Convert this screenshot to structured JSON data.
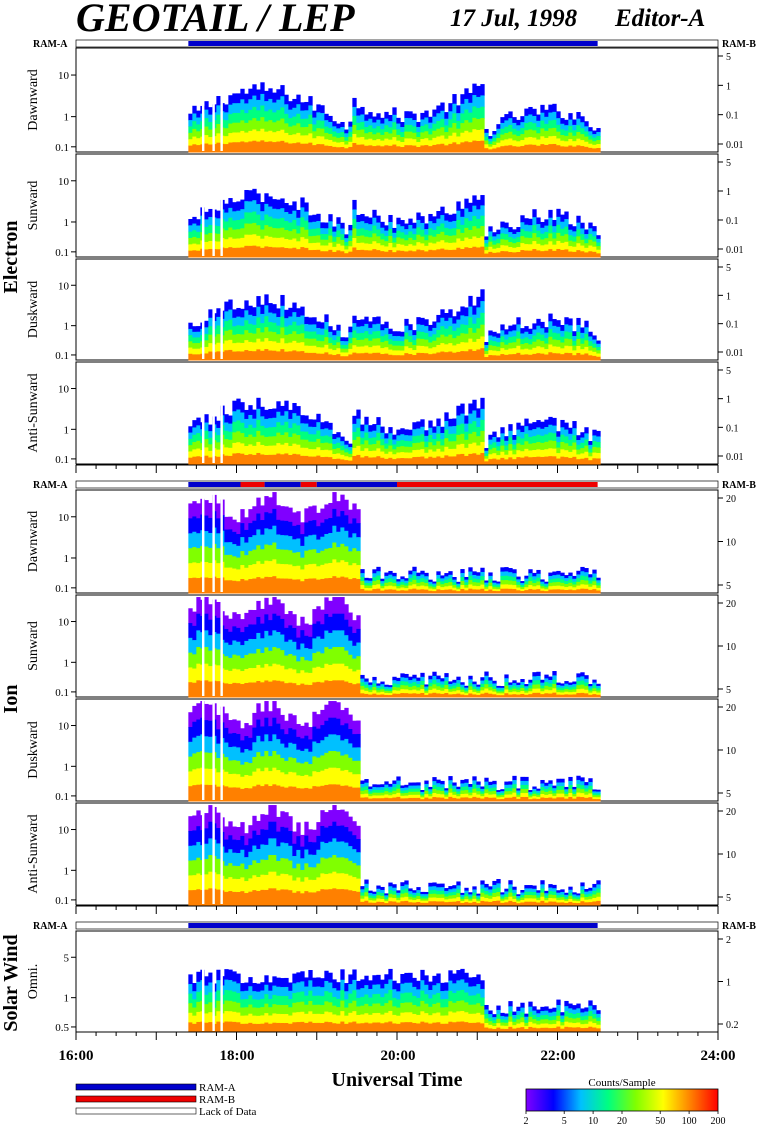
{
  "header": {
    "title": "GEOTAIL / LEP",
    "date": "17 Jul, 1998",
    "editor": "Editor-A"
  },
  "colors": {
    "ram_a": "#0000cc",
    "ram_b": "#ee0000",
    "spectrogram_scale": [
      "#8000ff",
      "#0000ff",
      "#00c0ff",
      "#00ff80",
      "#80ff00",
      "#ffff00",
      "#ff8000",
      "#ff0000"
    ]
  },
  "chart_data": {
    "type": "heatmap",
    "x": {
      "label": "Universal Time",
      "range_hours": [
        16,
        24
      ],
      "tick_labels": [
        "16:00",
        "18:00",
        "20:00",
        "22:00",
        "24:00"
      ],
      "tick_hours": [
        16,
        18,
        20,
        22,
        24
      ],
      "minor_tick_step_hours": 0.25
    },
    "data_coverage_hours": [
      17.4,
      22.5
    ],
    "data_gaps_hours": [
      [
        17.57,
        17.6
      ],
      [
        17.7,
        17.73
      ],
      [
        17.8,
        17.83
      ]
    ],
    "groups": [
      {
        "name": "Electron",
        "ram_label_left": "RAM-A",
        "ram_label_right": "RAM-B",
        "ram_segments": [
          {
            "mode": "A",
            "from": 17.4,
            "to": 22.5
          }
        ],
        "panels": [
          {
            "label": "Dawnward",
            "left_ticks": [
              "10",
              "1",
              "0.1"
            ],
            "right_ticks": [
              "5",
              "1",
              "0.1",
              "0.01"
            ]
          },
          {
            "label": "Sunward",
            "left_ticks": [
              "10",
              "1",
              "0.1"
            ],
            "right_ticks": [
              "5",
              "1",
              "0.1",
              "0.01"
            ]
          },
          {
            "label": "Duskward",
            "left_ticks": [
              "10",
              "1",
              "0.1"
            ],
            "right_ticks": [
              "5",
              "1",
              "0.1",
              "0.01"
            ]
          },
          {
            "label": "Anti-Sunward",
            "left_ticks": [
              "10",
              "1",
              "0.1"
            ],
            "right_ticks": [
              "5",
              "1",
              "0.1",
              "0.01"
            ]
          }
        ],
        "right_tick_values": [
          5,
          1,
          0.1,
          0.01
        ]
      },
      {
        "name": "Ion",
        "ram_label_left": "RAM-A",
        "ram_label_right": "RAM-B",
        "ram_segments": [
          {
            "mode": "A",
            "from": 17.4,
            "to": 18.05
          },
          {
            "mode": "B",
            "from": 18.05,
            "to": 18.35
          },
          {
            "mode": "A",
            "from": 18.35,
            "to": 18.8
          },
          {
            "mode": "B",
            "from": 18.8,
            "to": 19.0
          },
          {
            "mode": "A",
            "from": 19.0,
            "to": 20.0
          },
          {
            "mode": "B",
            "from": 20.0,
            "to": 22.5
          }
        ],
        "panels": [
          {
            "label": "Dawnward",
            "left_ticks": [
              "10",
              "1",
              "0.1"
            ],
            "right_ticks": [
              "20",
              "10",
              "5"
            ]
          },
          {
            "label": "Sunward",
            "left_ticks": [
              "10",
              "1",
              "0.1"
            ],
            "right_ticks": [
              "20",
              "10",
              "5"
            ]
          },
          {
            "label": "Duskward",
            "left_ticks": [
              "10",
              "1",
              "0.1"
            ],
            "right_ticks": [
              "20",
              "10",
              "5"
            ]
          },
          {
            "label": "Anti-Sunward",
            "left_ticks": [
              "10",
              "1",
              "0.1"
            ],
            "right_ticks": [
              "20",
              "10",
              "5"
            ]
          }
        ],
        "right_tick_values": [
          20,
          10,
          5
        ]
      },
      {
        "name": "Solar Wind",
        "ram_label_left": "RAM-A",
        "ram_label_right": "RAM-B",
        "ram_segments": [
          {
            "mode": "A",
            "from": 17.4,
            "to": 22.5
          }
        ],
        "panels": [
          {
            "label": "Omni.",
            "left_ticks": [
              "5",
              "1",
              "0.5"
            ],
            "right_ticks": [
              "2",
              "1",
              "0.2"
            ]
          }
        ],
        "right_tick_values": [
          2,
          1,
          0.2
        ]
      }
    ],
    "legend": {
      "items": [
        {
          "label": "RAM-A",
          "style": "ram_a"
        },
        {
          "label": "RAM-B",
          "style": "ram_b"
        },
        {
          "label": "Lack of Data",
          "style": "none"
        }
      ]
    },
    "colorbar": {
      "title": "Counts/Sample",
      "tick_labels": [
        "2",
        "5",
        "10",
        "20",
        "50",
        "100",
        "200"
      ],
      "tick_values": [
        2,
        5,
        10,
        20,
        50,
        100,
        200
      ],
      "range": [
        2,
        200
      ],
      "scale": "log"
    }
  }
}
